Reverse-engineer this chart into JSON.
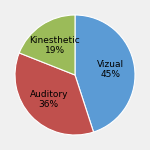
{
  "labels": [
    "Vizual\n45%",
    "Auditory\n36%",
    "Kinesthetic\n19%"
  ],
  "sizes": [
    45,
    36,
    19
  ],
  "colors": [
    "#5b9bd5",
    "#c0504d",
    "#9bbb59"
  ],
  "label_fontsize": 6.5,
  "startangle": 90,
  "background_color": "#f0f0f0"
}
